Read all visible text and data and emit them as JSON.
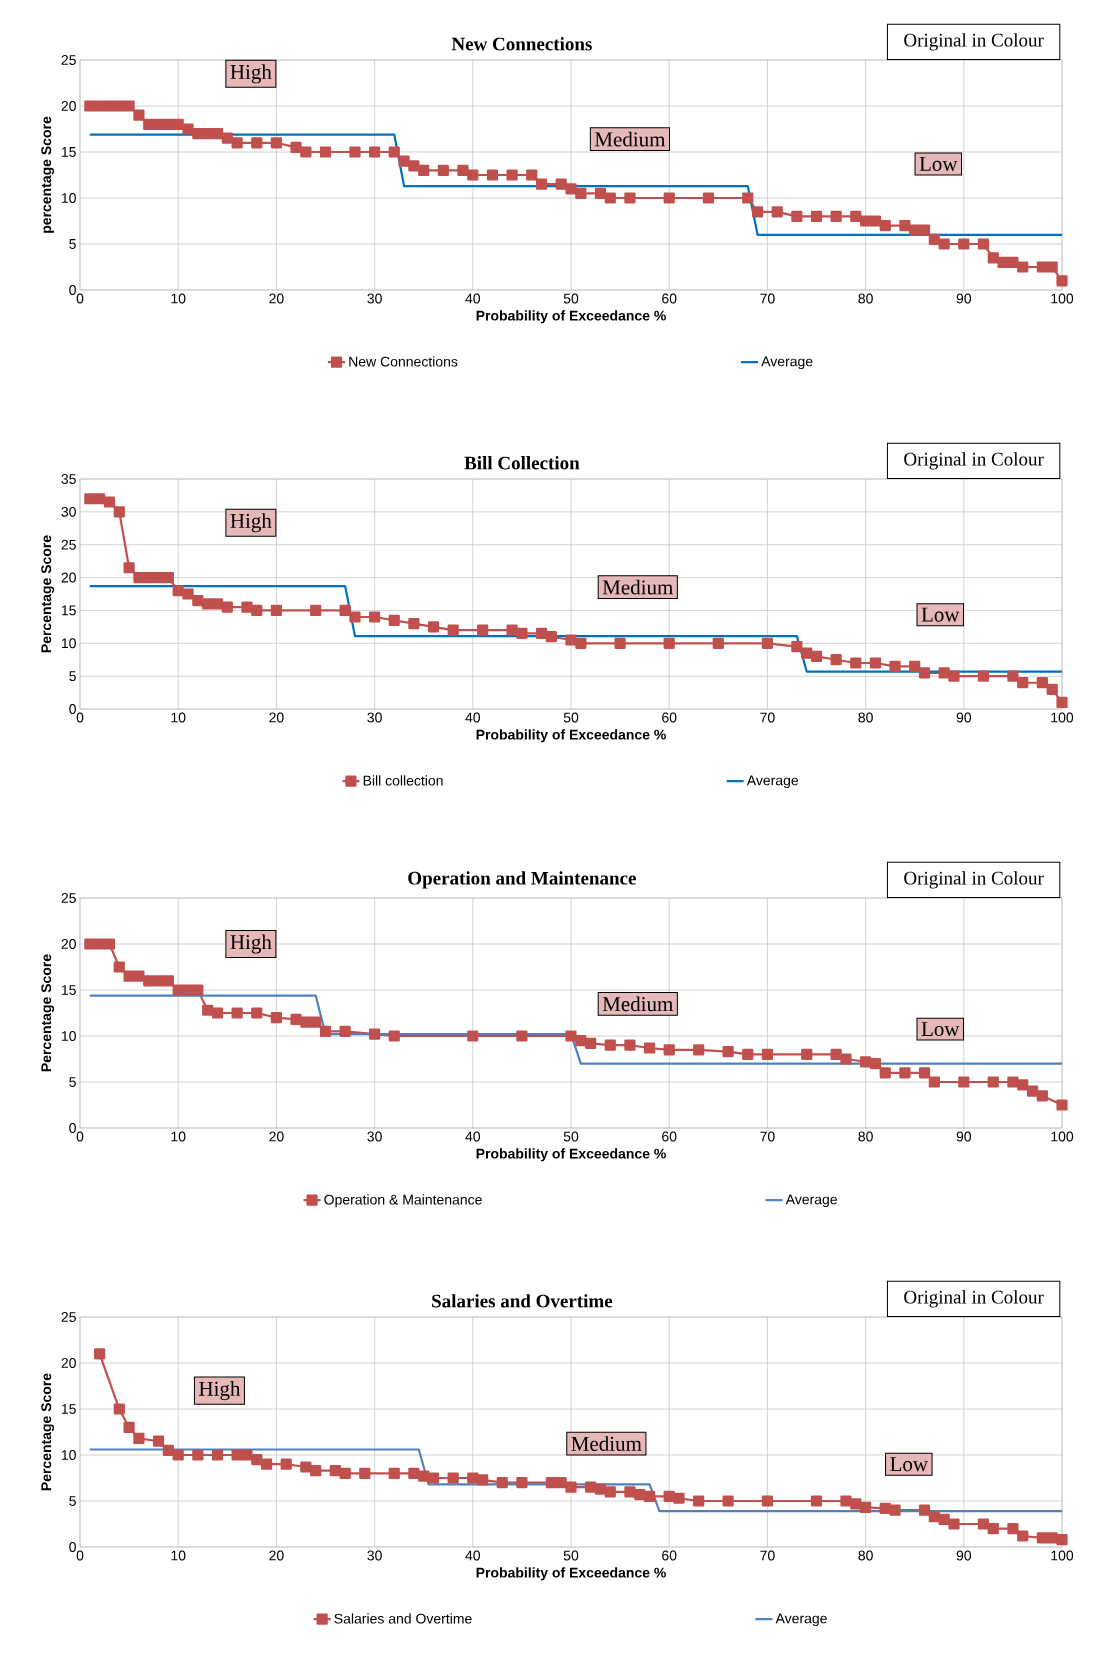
{
  "chart_data": [
    {
      "type": "line",
      "title": "New Connections",
      "xlabel": "Probability of Exceedance %",
      "ylabel": "percentage Score",
      "xlim": [
        0,
        100
      ],
      "ylim": [
        0,
        25
      ],
      "xticks": [
        0,
        10,
        20,
        30,
        40,
        50,
        60,
        70,
        80,
        90,
        100
      ],
      "yticks": [
        0,
        5,
        10,
        15,
        20,
        25
      ],
      "grid": true,
      "legend": "bottom",
      "series": [
        {
          "name": "New Connections",
          "color": "#c0504d",
          "marker": "square",
          "x": [
            1,
            2,
            3,
            4,
            5,
            6,
            7,
            8,
            9,
            10,
            11,
            12,
            13,
            14,
            15,
            16,
            18,
            20,
            22,
            23,
            25,
            28,
            30,
            32,
            33,
            34,
            35,
            37,
            39,
            40,
            42,
            44,
            46,
            47,
            49,
            50,
            51,
            53,
            54,
            56,
            60,
            64,
            68,
            69,
            71,
            73,
            75,
            77,
            79,
            80,
            81,
            82,
            84,
            85,
            86,
            87,
            88,
            90,
            92,
            93,
            94,
            95,
            96,
            98,
            99,
            100
          ],
          "values": [
            20,
            20,
            20,
            20,
            20,
            19,
            18,
            18,
            18,
            18,
            17.5,
            17,
            17,
            17,
            16.5,
            16,
            16,
            16,
            15.5,
            15,
            15,
            15,
            15,
            15,
            14,
            13.5,
            13,
            13,
            13,
            12.5,
            12.5,
            12.5,
            12.5,
            11.5,
            11.5,
            11,
            10.5,
            10.5,
            10,
            10,
            10,
            10,
            10,
            8.5,
            8.5,
            8,
            8,
            8,
            8,
            7.5,
            7.5,
            7,
            7,
            6.5,
            6.5,
            5.5,
            5,
            5,
            5,
            3.5,
            3,
            3,
            2.5,
            2.5,
            2.5,
            1
          ]
        },
        {
          "name": "Average",
          "color": "#0070c0",
          "marker": "none",
          "x": [
            1,
            32,
            33,
            68,
            69,
            100
          ],
          "values": [
            16.9,
            16.9,
            11.3,
            11.3,
            6,
            6
          ]
        }
      ],
      "annotations": [
        "Original in Colour",
        "High",
        "Medium",
        "Low"
      ]
    },
    {
      "type": "line",
      "title": "Bill Collection",
      "xlabel": "Probability of Exceedance %",
      "ylabel": "Percentage Score",
      "xlim": [
        0,
        100
      ],
      "ylim": [
        0,
        35
      ],
      "xticks": [
        0,
        10,
        20,
        30,
        40,
        50,
        60,
        70,
        80,
        90,
        100
      ],
      "yticks": [
        0,
        5,
        10,
        15,
        20,
        25,
        30,
        35
      ],
      "grid": true,
      "legend": "bottom",
      "series": [
        {
          "name": "Bill collection",
          "color": "#c0504d",
          "marker": "square",
          "x": [
            1,
            2,
            3,
            4,
            5,
            6,
            7,
            8,
            9,
            10,
            11,
            12,
            13,
            14,
            15,
            17,
            18,
            20,
            24,
            27,
            28,
            30,
            32,
            34,
            36,
            38,
            41,
            44,
            45,
            47,
            48,
            50,
            51,
            55,
            60,
            65,
            70,
            73,
            74,
            75,
            77,
            79,
            81,
            83,
            85,
            86,
            88,
            89,
            92,
            95,
            96,
            98,
            99,
            100
          ],
          "values": [
            32,
            32,
            31.5,
            30,
            21.5,
            20,
            20,
            20,
            20,
            18,
            17.5,
            16.5,
            16,
            16,
            15.5,
            15.5,
            15,
            15,
            15,
            15,
            14,
            14,
            13.5,
            13,
            12.5,
            12,
            12,
            12,
            11.5,
            11.5,
            11,
            10.5,
            10,
            10,
            10,
            10,
            10,
            9.5,
            8.5,
            8,
            7.5,
            7,
            7,
            6.5,
            6.5,
            5.5,
            5.5,
            5,
            5,
            5,
            4,
            4,
            3,
            1
          ]
        },
        {
          "name": "Average",
          "color": "#0070c0",
          "marker": "none",
          "x": [
            1,
            27,
            28,
            73,
            74,
            100
          ],
          "values": [
            18.7,
            18.7,
            11.1,
            11.1,
            5.7,
            5.7
          ]
        }
      ],
      "annotations": [
        "Original in Colour",
        "High",
        "Medium",
        "Low"
      ]
    },
    {
      "type": "line",
      "title": "Operation and Maintenance",
      "xlabel": "Probability of Exceedance %",
      "ylabel": "Percentage Score",
      "xlim": [
        0,
        100
      ],
      "ylim": [
        0,
        25
      ],
      "xticks": [
        0,
        10,
        20,
        30,
        40,
        50,
        60,
        70,
        80,
        90,
        100
      ],
      "yticks": [
        0,
        5,
        10,
        15,
        20,
        25
      ],
      "grid": true,
      "legend": "bottom",
      "series": [
        {
          "name": "Operation & Maintenance",
          "color": "#c0504d",
          "marker": "square",
          "x": [
            1,
            2,
            3,
            4,
            5,
            6,
            7,
            8,
            9,
            10,
            11,
            12,
            13,
            14,
            16,
            18,
            20,
            22,
            23,
            24,
            25,
            27,
            30,
            32,
            40,
            45,
            50,
            51,
            52,
            54,
            56,
            58,
            60,
            63,
            66,
            68,
            70,
            74,
            77,
            78,
            80,
            81,
            82,
            84,
            86,
            87,
            90,
            93,
            95,
            96,
            97,
            98,
            100
          ],
          "values": [
            20,
            20,
            20,
            17.5,
            16.5,
            16.5,
            16,
            16,
            16,
            15,
            15,
            15,
            12.8,
            12.5,
            12.5,
            12.5,
            12,
            11.8,
            11.5,
            11.5,
            10.5,
            10.5,
            10.2,
            10,
            10,
            10,
            10,
            9.5,
            9.2,
            9,
            9,
            8.7,
            8.5,
            8.5,
            8.3,
            8,
            8,
            8,
            8,
            7.5,
            7.2,
            7,
            6,
            6,
            6,
            5,
            5,
            5,
            5,
            4.7,
            4,
            3.5,
            2.5
          ]
        },
        {
          "name": "Average",
          "color": "#4f81bd",
          "marker": "none",
          "x": [
            1,
            24,
            25,
            50,
            51,
            100
          ],
          "values": [
            14.4,
            14.4,
            10.2,
            10.2,
            7,
            7
          ]
        }
      ],
      "annotations": [
        "Original in Colour",
        "High",
        "Medium",
        "Low"
      ]
    },
    {
      "type": "line",
      "title": "Salaries and Overtime",
      "xlabel": "Probability of Exceedance %",
      "ylabel": "Percentage Score",
      "xlim": [
        0,
        100
      ],
      "ylim": [
        0,
        25
      ],
      "xticks": [
        0,
        10,
        20,
        30,
        40,
        50,
        60,
        70,
        80,
        90,
        100
      ],
      "yticks": [
        0,
        5,
        10,
        15,
        20,
        25
      ],
      "grid": true,
      "legend": "bottom",
      "series": [
        {
          "name": "Salaries and Overtime",
          "color": "#c0504d",
          "marker": "square",
          "x": [
            2,
            4,
            5,
            6,
            8,
            9,
            10,
            12,
            14,
            16,
            17,
            18,
            19,
            21,
            23,
            24,
            26,
            27,
            29,
            32,
            34,
            35,
            36,
            38,
            40,
            41,
            43,
            45,
            48,
            49,
            50,
            52,
            53,
            54,
            56,
            57,
            58,
            60,
            61,
            63,
            66,
            70,
            75,
            78,
            79,
            80,
            82,
            83,
            86,
            87,
            88,
            89,
            92,
            93,
            95,
            96,
            98,
            99,
            100
          ],
          "values": [
            21,
            15,
            13,
            11.8,
            11.5,
            10.5,
            10,
            10,
            10,
            10,
            10,
            9.5,
            9,
            9,
            8.7,
            8.3,
            8.3,
            8,
            8,
            8,
            8,
            7.7,
            7.5,
            7.5,
            7.5,
            7.3,
            7,
            7,
            7,
            7,
            6.5,
            6.5,
            6.3,
            6,
            6,
            5.7,
            5.5,
            5.5,
            5.3,
            5,
            5,
            5,
            5,
            5,
            4.7,
            4.3,
            4.2,
            4,
            4,
            3.3,
            3,
            2.5,
            2.5,
            2,
            2,
            1.2,
            1,
            1,
            0.8
          ]
        },
        {
          "name": "Average",
          "color": "#4f81bd",
          "marker": "none",
          "x": [
            1,
            34.5,
            35.5,
            58,
            59,
            100
          ],
          "values": [
            10.6,
            10.6,
            6.8,
            6.8,
            3.9,
            3.9
          ]
        }
      ],
      "annotations": [
        "Original in Colour",
        "High",
        "Medium",
        "Low"
      ]
    }
  ]
}
